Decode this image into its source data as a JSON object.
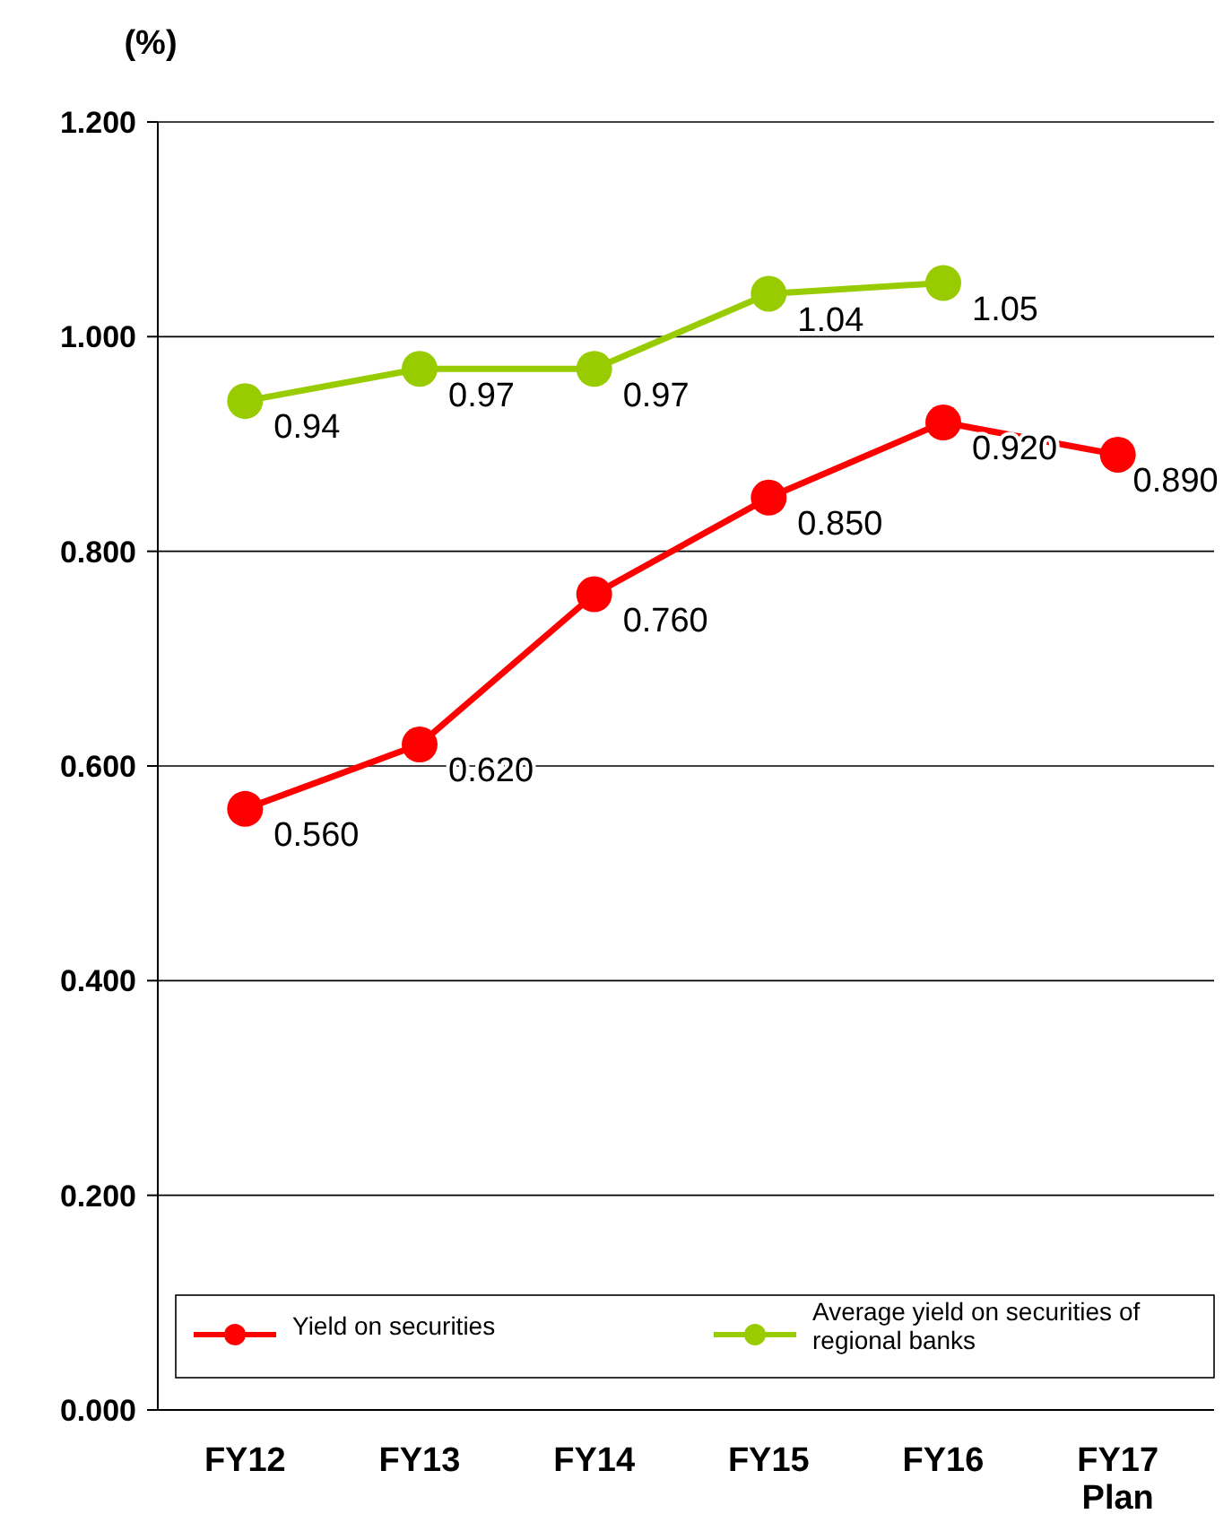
{
  "chart_data": {
    "type": "line",
    "ylabel": "(%)",
    "categories": [
      "FY12",
      "FY13",
      "FY14",
      "FY15",
      "FY16",
      "FY17 Plan"
    ],
    "ylim": [
      0,
      1.2
    ],
    "yticks": [
      {
        "value": 0,
        "label": "0.000"
      },
      {
        "value": 0.2,
        "label": "0.200"
      },
      {
        "value": 0.4,
        "label": "0.400"
      },
      {
        "value": 0.6,
        "label": "0.600"
      },
      {
        "value": 0.8,
        "label": "0.800"
      },
      {
        "value": 1,
        "label": "1.000"
      },
      {
        "value": 1.2,
        "label": "1.200"
      }
    ],
    "grid": "y",
    "legend": "bottom",
    "marker": "circle",
    "line_style": "solid",
    "series": [
      {
        "name": "Yield on securities",
        "color": "#ff0000",
        "values": [
          0.56,
          0.62,
          0.76,
          0.85,
          0.92,
          0.89
        ],
        "value_labels": [
          "0.560",
          "0.620",
          "0.760",
          "0.850",
          "0.920",
          "0.890"
        ]
      },
      {
        "name": "Average yield on securities of regional banks",
        "color": "#99cc00",
        "values": [
          0.94,
          0.97,
          0.97,
          1.04,
          1.05,
          null
        ],
        "value_labels": [
          "0.94",
          "0.97",
          "0.97",
          "1.04",
          "1.05",
          null
        ]
      }
    ]
  }
}
